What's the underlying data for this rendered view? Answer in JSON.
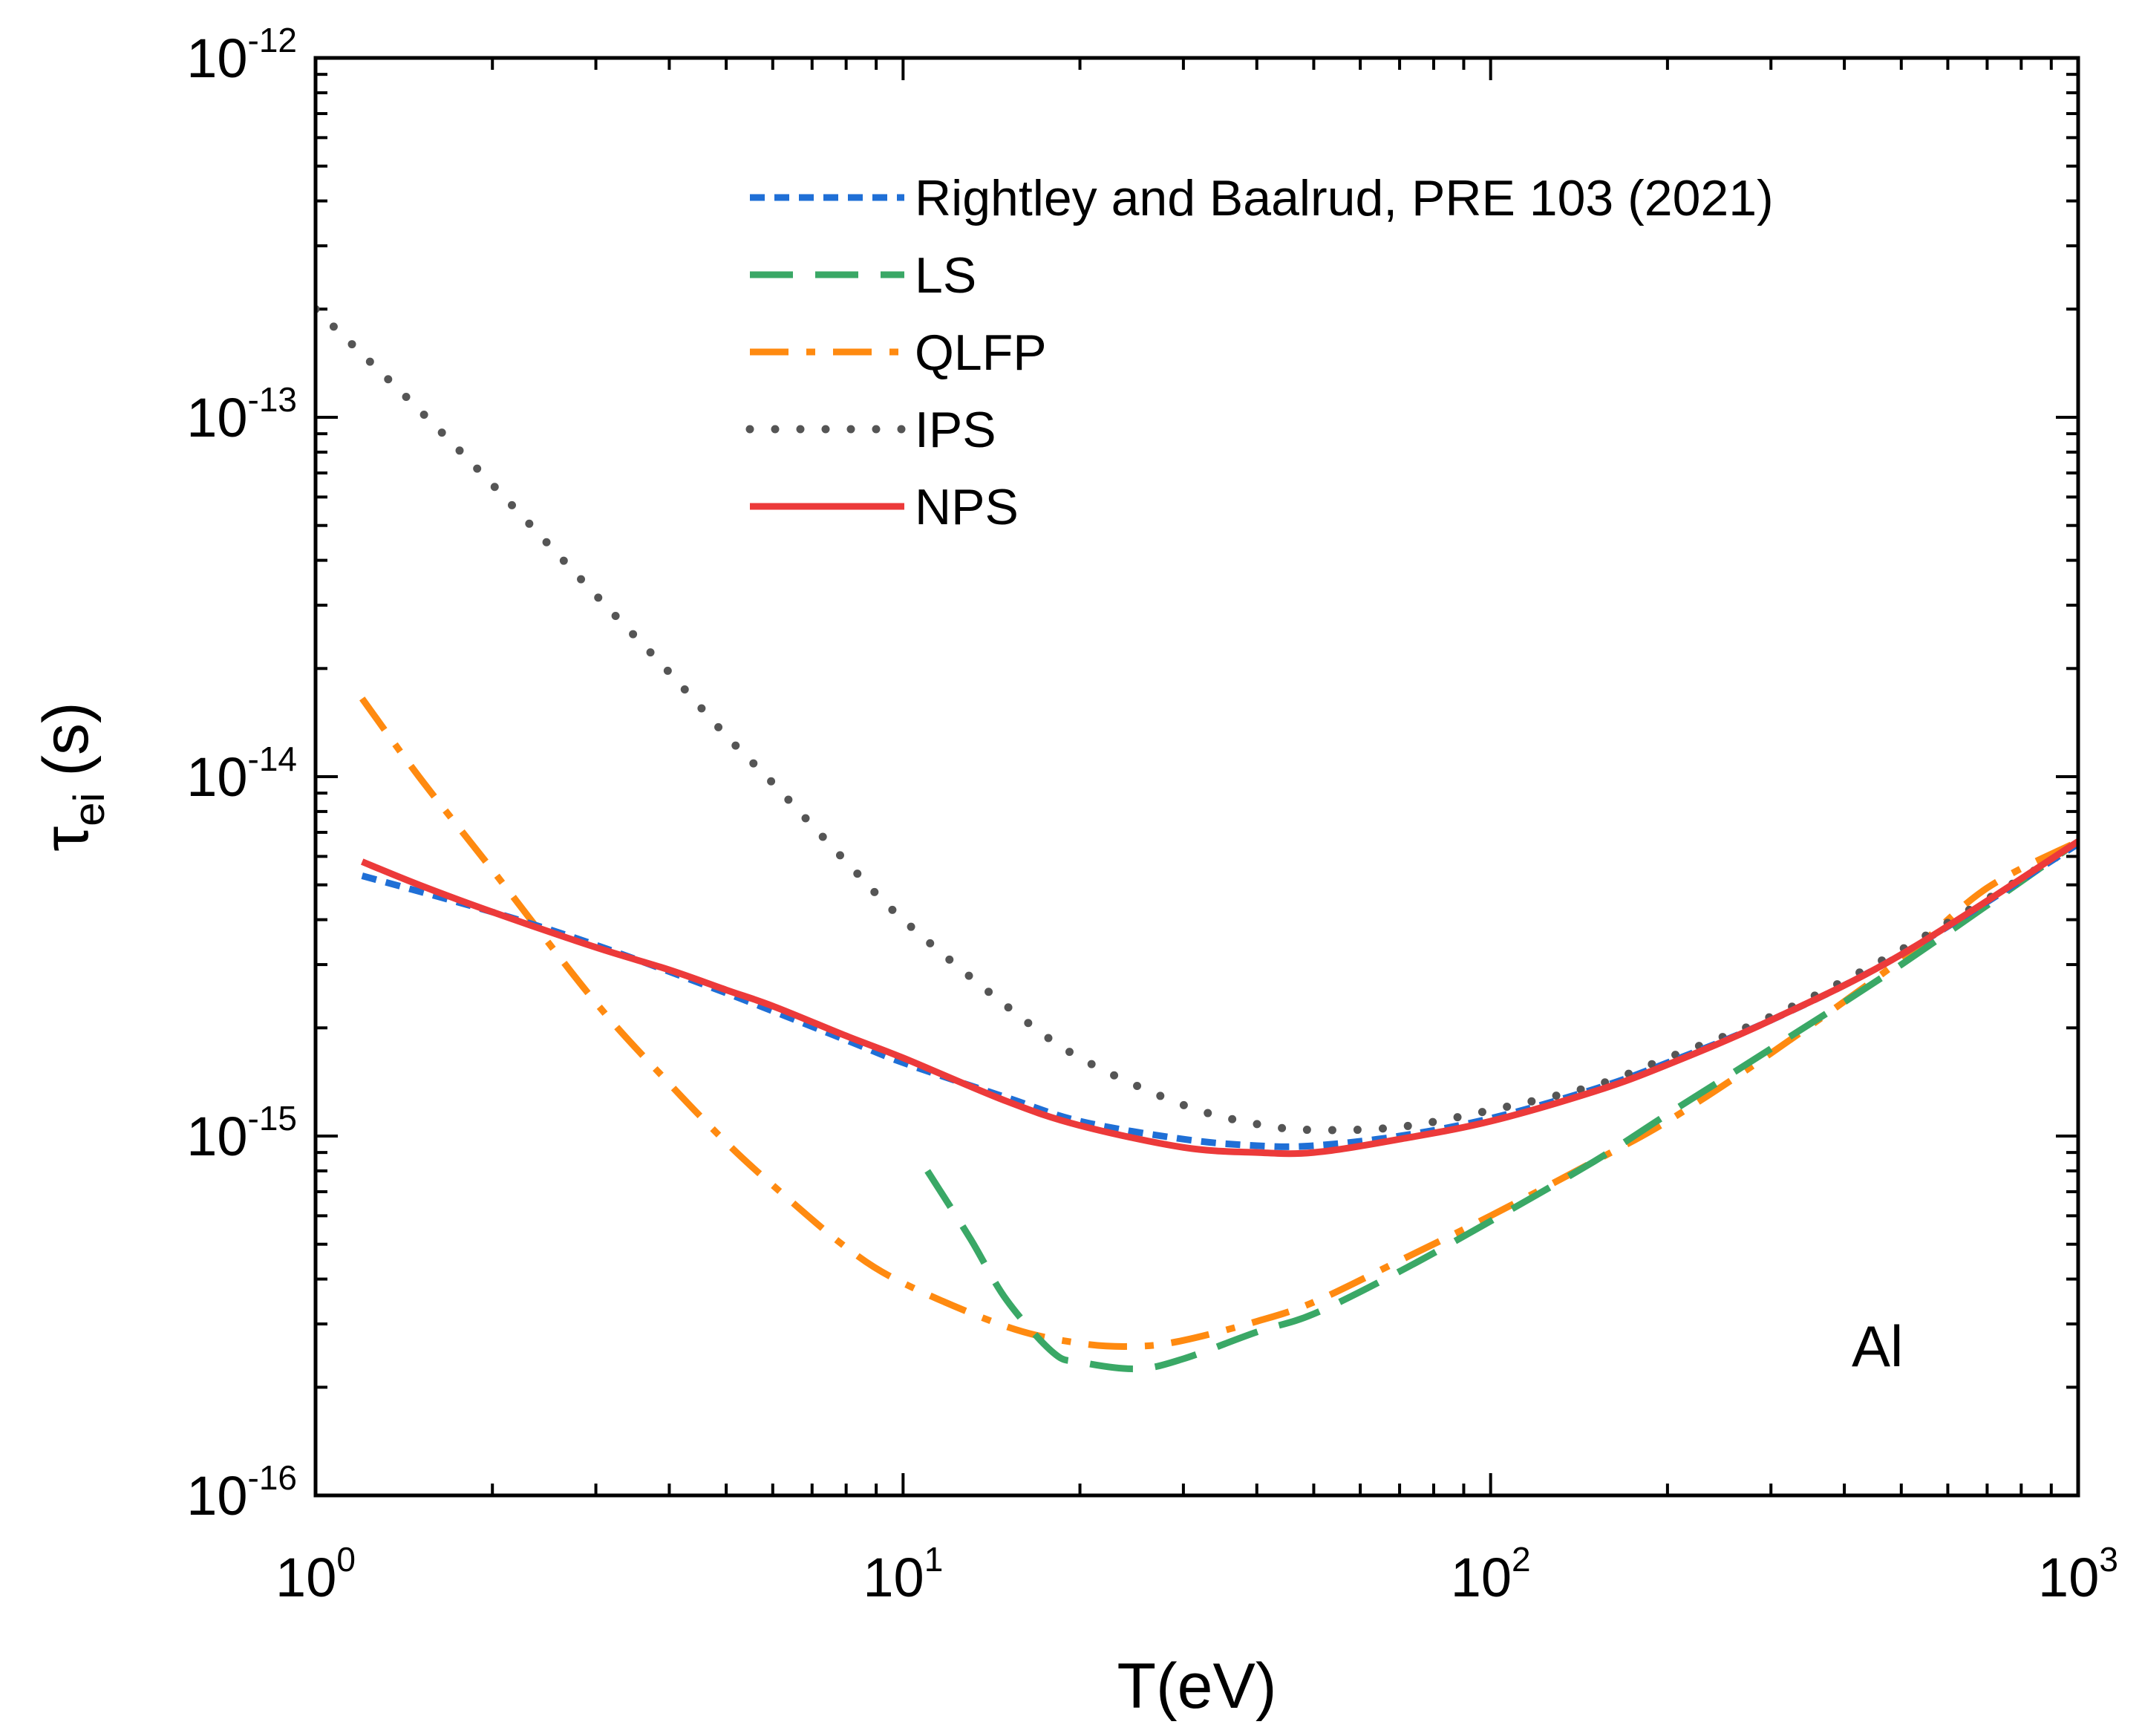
{
  "chart_data": {
    "type": "line",
    "title": "",
    "xlabel": "T(eV)",
    "ylabel": {
      "main": "τ",
      "sub": "ei",
      "unit": "(s)"
    },
    "x_scale": "log",
    "y_scale": "log",
    "xlim": [
      1,
      1000
    ],
    "ylim": [
      1e-16,
      1e-12
    ],
    "grid": false,
    "legend_position": "top-right",
    "annotation": "Al",
    "x_ticks": [
      {
        "base": "10",
        "exp": "0",
        "value": 1
      },
      {
        "base": "10",
        "exp": "1",
        "value": 10
      },
      {
        "base": "10",
        "exp": "2",
        "value": 100
      },
      {
        "base": "10",
        "exp": "3",
        "value": 1000
      }
    ],
    "y_ticks": [
      {
        "base": "10",
        "exp": "-12",
        "value": 1e-12
      },
      {
        "base": "10",
        "exp": "-13",
        "value": 1e-13
      },
      {
        "base": "10",
        "exp": "-14",
        "value": 1e-14
      },
      {
        "base": "10",
        "exp": "-15",
        "value": 1e-15
      },
      {
        "base": "10",
        "exp": "-16",
        "value": 1e-16
      }
    ],
    "series": [
      {
        "name": "Rightley and Baalrud, PRE 103 (2021)",
        "color": "#1f6fd6",
        "style": "short-dash",
        "x": [
          1.2,
          2,
          3,
          5,
          8,
          10,
          15,
          20,
          30,
          40,
          50,
          70,
          100,
          150,
          200,
          300,
          500,
          1000
        ],
        "y": [
          5.3e-15,
          4.2e-15,
          3.4e-15,
          2.5e-15,
          1.85e-15,
          1.6e-15,
          1.28e-15,
          1.1e-15,
          9.8e-16,
          9.4e-16,
          9.4e-16,
          1e-15,
          1.12e-15,
          1.35e-15,
          1.6e-15,
          2.1e-15,
          3.2e-15,
          6.5e-15
        ]
      },
      {
        "name": "LS",
        "color": "#3aa866",
        "style": "long-dash",
        "x": [
          11,
          13,
          15,
          18,
          20,
          25,
          30,
          40,
          50,
          70,
          100,
          150,
          200,
          300,
          500,
          1000
        ],
        "y": [
          8e-16,
          5.2e-16,
          3.5e-16,
          2.5e-16,
          2.35e-16,
          2.25e-16,
          2.4e-16,
          2.85e-16,
          3.2e-16,
          4.2e-16,
          5.8e-16,
          8.5e-16,
          1.15e-15,
          1.75e-15,
          3e-15,
          6.6e-15
        ]
      },
      {
        "name": "QLFP",
        "color": "#ff8a10",
        "style": "dash-dot",
        "x": [
          1.2,
          1.5,
          2,
          3,
          4,
          5,
          6,
          8,
          10,
          15,
          20,
          25,
          30,
          40,
          50,
          70,
          100,
          150,
          200,
          300,
          500,
          700,
          1000
        ],
        "y": [
          1.65e-14,
          1e-14,
          5.5e-15,
          2.35e-15,
          1.4e-15,
          9.6e-16,
          7.3e-16,
          4.9e-16,
          3.9e-16,
          2.95e-16,
          2.65e-16,
          2.6e-16,
          2.7e-16,
          3.05e-16,
          3.45e-16,
          4.5e-16,
          6e-16,
          8.5e-16,
          1.1e-15,
          1.7e-15,
          3.1e-15,
          4.9e-15,
          6.6e-15
        ]
      },
      {
        "name": "IPS",
        "color": "#555555",
        "style": "dotted",
        "x": [
          1,
          1.2,
          1.5,
          2,
          3,
          4,
          5,
          6,
          8,
          10,
          15,
          20,
          30,
          40,
          50,
          70,
          100,
          150,
          200,
          300,
          500,
          1000
        ],
        "y": [
          2e-13,
          1.5e-13,
          1.05e-13,
          6.5e-14,
          3.2e-14,
          1.95e-14,
          1.3e-14,
          9.6e-15,
          5.8e-15,
          4e-15,
          2.3e-15,
          1.65e-15,
          1.22e-15,
          1.08e-15,
          1.04e-15,
          1.06e-15,
          1.18e-15,
          1.38e-15,
          1.65e-15,
          2.15e-15,
          3.3e-15,
          6.5e-15
        ]
      },
      {
        "name": "NPS",
        "color": "#ec3a3a",
        "style": "solid",
        "x": [
          1.2,
          1.5,
          2,
          3,
          4,
          5,
          6,
          8,
          10,
          15,
          20,
          30,
          40,
          50,
          70,
          100,
          150,
          200,
          300,
          500,
          1000
        ],
        "y": [
          5.8e-15,
          5e-15,
          4.2e-15,
          3.35e-15,
          2.9e-15,
          2.55e-15,
          2.3e-15,
          1.9e-15,
          1.65e-15,
          1.25e-15,
          1.07e-15,
          9.3e-16,
          9e-16,
          9e-16,
          9.8e-16,
          1.1e-15,
          1.33e-15,
          1.58e-15,
          2.1e-15,
          3.2e-15,
          6.6e-15
        ]
      }
    ]
  }
}
